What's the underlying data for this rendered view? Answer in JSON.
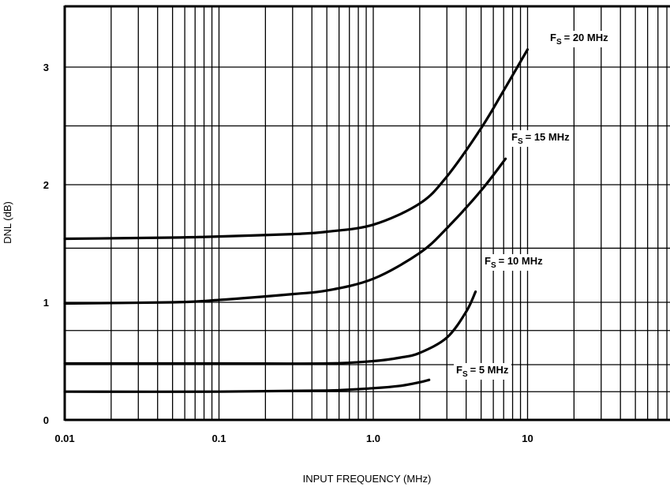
{
  "chart_data": {
    "type": "line",
    "title": "",
    "xlabel": "INPUT FREQUENCY (MHz)",
    "ylabel": "DNL (dB)",
    "x_scale": "log",
    "xlim": [
      0.01,
      100
    ],
    "ylim": [
      0,
      3.4
    ],
    "x_ticks": [
      {
        "value": 0.01,
        "label": "0.01"
      },
      {
        "value": 0.1,
        "label": "0.1"
      },
      {
        "value": 1,
        "label": "1.0"
      },
      {
        "value": 10,
        "label": "10"
      }
    ],
    "y_ticks": [
      {
        "value": 0,
        "label": "0"
      },
      {
        "value": 1,
        "label": "1"
      },
      {
        "value": 2,
        "label": "2"
      },
      {
        "value": 3,
        "label": "3"
      }
    ],
    "grid": true,
    "series": [
      {
        "name": "Fs = 20 MHz",
        "label_main": "F",
        "label_sub": "S",
        "label_rest": "= 20 MHz",
        "x": [
          0.01,
          0.05,
          0.1,
          0.3,
          0.5,
          1.0,
          2.0,
          3.0,
          5.0,
          7.0,
          10.0
        ],
        "y": [
          1.54,
          1.55,
          1.56,
          1.58,
          1.6,
          1.66,
          1.84,
          2.07,
          2.48,
          2.8,
          3.15
        ]
      },
      {
        "name": "Fs = 15 MHz",
        "label_main": "F",
        "label_sub": "S",
        "label_rest": "= 15 MHz",
        "x": [
          0.01,
          0.05,
          0.1,
          0.3,
          0.5,
          1.0,
          2.0,
          3.0,
          5.0,
          7.2
        ],
        "y": [
          0.99,
          1.0,
          1.02,
          1.07,
          1.1,
          1.2,
          1.42,
          1.63,
          1.95,
          2.22
        ]
      },
      {
        "name": "Fs = 10 MHz",
        "label_main": "F",
        "label_sub": "S",
        "label_rest": "= 10 MHz",
        "x": [
          0.01,
          0.1,
          0.5,
          1.0,
          1.5,
          2.0,
          3.0,
          4.0,
          4.6
        ],
        "y": [
          0.48,
          0.48,
          0.48,
          0.5,
          0.53,
          0.57,
          0.7,
          0.92,
          1.09
        ]
      },
      {
        "name": "Fs = 5 MHz",
        "label_main": "F",
        "label_sub": "S",
        "label_rest": "= 5 MHz",
        "x": [
          0.01,
          0.1,
          0.5,
          1.0,
          1.5,
          2.0,
          2.3
        ],
        "y": [
          0.24,
          0.24,
          0.25,
          0.27,
          0.29,
          0.32,
          0.34
        ]
      }
    ]
  }
}
